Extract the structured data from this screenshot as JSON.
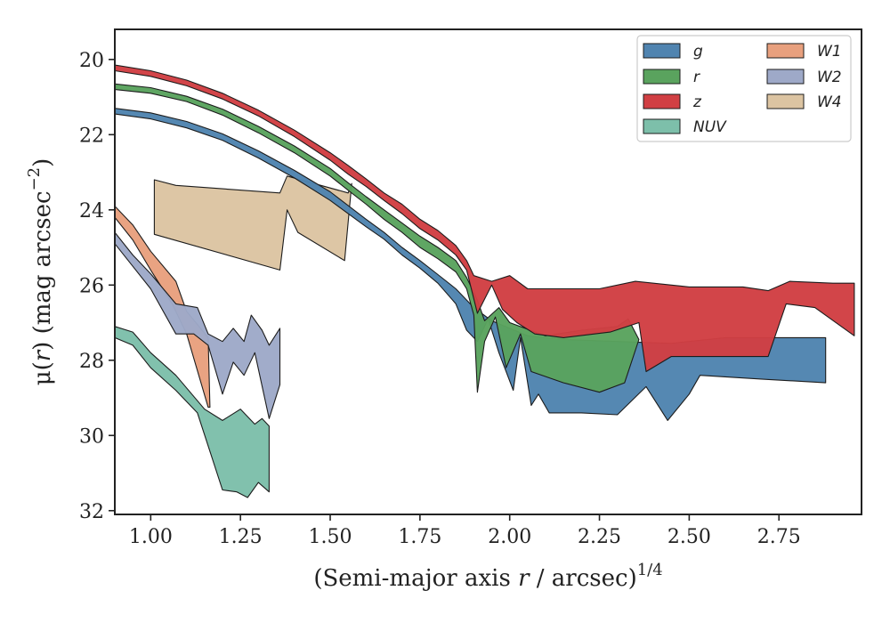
{
  "chart_data": {
    "type": "area",
    "xlabel": {
      "main": "(Semi-major axis ",
      "var": "r",
      "unit": " / arcsec)",
      "sup": "1/4"
    },
    "ylabel": {
      "pre": "μ(",
      "var": "r",
      "post": ") (mag arcsec",
      "sup": "−2",
      "close": ")"
    },
    "xlim": [
      0.9,
      2.98
    ],
    "ylim": [
      32.1,
      19.2
    ],
    "y_inverted": true,
    "xticks": [
      1.0,
      1.25,
      1.5,
      1.75,
      2.0,
      2.25,
      2.5,
      2.75
    ],
    "xtick_labels": [
      "1.00",
      "1.25",
      "1.50",
      "1.75",
      "2.00",
      "2.25",
      "2.50",
      "2.75"
    ],
    "yticks": [
      20,
      22,
      24,
      26,
      28,
      30,
      32
    ],
    "ytick_labels": [
      "20",
      "22",
      "24",
      "26",
      "28",
      "30",
      "32"
    ],
    "grid": false,
    "legend_position": "top-right",
    "series": [
      {
        "name": "W4",
        "color": "#dcc4a2",
        "top": [
          [
            1.01,
            23.2
          ],
          [
            1.07,
            23.35
          ],
          [
            1.36,
            23.55
          ],
          [
            1.38,
            23.1
          ],
          [
            1.55,
            23.55
          ],
          [
            1.56,
            23.3
          ]
        ],
        "bottom": [
          [
            1.01,
            24.65
          ],
          [
            1.36,
            25.6
          ],
          [
            1.38,
            24.0
          ],
          [
            1.41,
            24.6
          ],
          [
            1.54,
            25.35
          ],
          [
            1.56,
            23.3
          ]
        ]
      },
      {
        "name": "W1",
        "color": "#e8a07e",
        "top": [
          [
            0.9,
            23.9
          ],
          [
            0.95,
            24.4
          ],
          [
            1.0,
            25.1
          ],
          [
            1.07,
            25.9
          ],
          [
            1.1,
            26.7
          ],
          [
            1.16,
            27.4
          ],
          [
            1.165,
            29.25
          ]
        ],
        "bottom": [
          [
            0.9,
            24.2
          ],
          [
            0.95,
            24.8
          ],
          [
            1.0,
            25.6
          ],
          [
            1.06,
            26.5
          ],
          [
            1.1,
            27.3
          ],
          [
            1.16,
            29.25
          ]
        ]
      },
      {
        "name": "W2",
        "color": "#9ea9c8",
        "top": [
          [
            0.9,
            24.6
          ],
          [
            0.95,
            25.2
          ],
          [
            1.0,
            25.7
          ],
          [
            1.07,
            26.5
          ],
          [
            1.13,
            26.6
          ],
          [
            1.16,
            27.3
          ],
          [
            1.2,
            27.5
          ],
          [
            1.23,
            27.15
          ],
          [
            1.26,
            27.5
          ],
          [
            1.28,
            26.8
          ],
          [
            1.31,
            27.2
          ],
          [
            1.33,
            27.6
          ],
          [
            1.36,
            27.15
          ],
          [
            1.36,
            28.65
          ]
        ],
        "bottom": [
          [
            0.9,
            24.9
          ],
          [
            0.95,
            25.5
          ],
          [
            1.0,
            26.1
          ],
          [
            1.07,
            27.3
          ],
          [
            1.12,
            27.3
          ],
          [
            1.16,
            27.6
          ],
          [
            1.2,
            28.9
          ],
          [
            1.23,
            28.05
          ],
          [
            1.26,
            28.4
          ],
          [
            1.29,
            27.8
          ],
          [
            1.33,
            29.55
          ],
          [
            1.36,
            28.65
          ]
        ]
      },
      {
        "name": "NUV",
        "color": "#7dbfaa",
        "top": [
          [
            0.9,
            27.1
          ],
          [
            0.95,
            27.25
          ],
          [
            1.0,
            27.8
          ],
          [
            1.07,
            28.4
          ],
          [
            1.15,
            29.3
          ],
          [
            1.2,
            29.6
          ],
          [
            1.25,
            29.3
          ],
          [
            1.29,
            29.7
          ],
          [
            1.31,
            29.55
          ],
          [
            1.33,
            29.75
          ],
          [
            1.33,
            31.5
          ]
        ],
        "bottom": [
          [
            0.9,
            27.4
          ],
          [
            0.95,
            27.6
          ],
          [
            1.0,
            28.2
          ],
          [
            1.07,
            28.8
          ],
          [
            1.13,
            29.4
          ],
          [
            1.2,
            31.45
          ],
          [
            1.24,
            31.5
          ],
          [
            1.27,
            31.65
          ],
          [
            1.3,
            31.25
          ],
          [
            1.33,
            31.5
          ]
        ]
      },
      {
        "name": "g",
        "color": "#5084b0",
        "top": [
          [
            0.9,
            21.3
          ],
          [
            1.0,
            21.42
          ],
          [
            1.1,
            21.65
          ],
          [
            1.2,
            21.98
          ],
          [
            1.3,
            22.43
          ],
          [
            1.4,
            22.95
          ],
          [
            1.5,
            23.52
          ],
          [
            1.6,
            24.25
          ],
          [
            1.65,
            24.6
          ],
          [
            1.7,
            25.0
          ],
          [
            1.75,
            25.35
          ],
          [
            1.8,
            25.72
          ],
          [
            1.85,
            26.1
          ],
          [
            1.9,
            26.6
          ],
          [
            1.95,
            26.95
          ],
          [
            2.0,
            27.15
          ],
          [
            2.05,
            27.35
          ],
          [
            2.15,
            27.45
          ],
          [
            2.3,
            27.5
          ],
          [
            2.45,
            27.55
          ],
          [
            2.6,
            27.4
          ],
          [
            2.75,
            27.4
          ],
          [
            2.88,
            27.4
          ],
          [
            2.88,
            28.6
          ]
        ],
        "bottom": [
          [
            0.9,
            21.45
          ],
          [
            1.0,
            21.58
          ],
          [
            1.1,
            21.82
          ],
          [
            1.2,
            22.15
          ],
          [
            1.3,
            22.62
          ],
          [
            1.4,
            23.15
          ],
          [
            1.5,
            23.75
          ],
          [
            1.6,
            24.45
          ],
          [
            1.65,
            24.78
          ],
          [
            1.7,
            25.2
          ],
          [
            1.75,
            25.55
          ],
          [
            1.8,
            25.95
          ],
          [
            1.85,
            26.5
          ],
          [
            1.88,
            27.2
          ],
          [
            1.91,
            27.5
          ],
          [
            1.94,
            26.9
          ],
          [
            1.97,
            27.8
          ],
          [
            2.01,
            28.8
          ],
          [
            2.03,
            27.4
          ],
          [
            2.06,
            29.2
          ],
          [
            2.08,
            28.9
          ],
          [
            2.11,
            29.4
          ],
          [
            2.2,
            29.4
          ],
          [
            2.3,
            29.45
          ],
          [
            2.38,
            28.7
          ],
          [
            2.44,
            29.6
          ],
          [
            2.5,
            28.9
          ],
          [
            2.53,
            28.4
          ],
          [
            2.7,
            28.5
          ],
          [
            2.88,
            28.6
          ]
        ]
      },
      {
        "name": "r",
        "color": "#5aa35e",
        "top": [
          [
            0.9,
            20.65
          ],
          [
            1.0,
            20.75
          ],
          [
            1.1,
            20.98
          ],
          [
            1.2,
            21.32
          ],
          [
            1.3,
            21.78
          ],
          [
            1.4,
            22.3
          ],
          [
            1.5,
            22.9
          ],
          [
            1.55,
            23.28
          ],
          [
            1.6,
            23.65
          ],
          [
            1.65,
            24.0
          ],
          [
            1.7,
            24.35
          ],
          [
            1.75,
            24.7
          ],
          [
            1.8,
            25.0
          ],
          [
            1.85,
            25.35
          ],
          [
            1.88,
            25.8
          ],
          [
            1.91,
            26.4
          ],
          [
            1.93,
            26.95
          ],
          [
            1.97,
            26.6
          ],
          [
            2.0,
            27.0
          ],
          [
            2.1,
            27.35
          ],
          [
            2.2,
            27.2
          ],
          [
            2.3,
            27.1
          ],
          [
            2.33,
            26.9
          ],
          [
            2.36,
            27.45
          ]
        ],
        "bottom": [
          [
            0.9,
            20.8
          ],
          [
            1.0,
            20.9
          ],
          [
            1.1,
            21.12
          ],
          [
            1.2,
            21.48
          ],
          [
            1.3,
            21.95
          ],
          [
            1.4,
            22.48
          ],
          [
            1.5,
            23.1
          ],
          [
            1.55,
            23.48
          ],
          [
            1.6,
            23.85
          ],
          [
            1.65,
            24.25
          ],
          [
            1.7,
            24.6
          ],
          [
            1.75,
            25.0
          ],
          [
            1.8,
            25.3
          ],
          [
            1.85,
            25.65
          ],
          [
            1.88,
            26.1
          ],
          [
            1.9,
            26.8
          ],
          [
            1.91,
            28.85
          ],
          [
            1.93,
            27.5
          ],
          [
            1.96,
            26.85
          ],
          [
            1.99,
            28.2
          ],
          [
            2.03,
            27.3
          ],
          [
            2.06,
            28.3
          ],
          [
            2.15,
            28.6
          ],
          [
            2.25,
            28.85
          ],
          [
            2.32,
            28.6
          ],
          [
            2.36,
            27.45
          ]
        ]
      },
      {
        "name": "z",
        "color": "#d13f43",
        "top": [
          [
            0.9,
            20.15
          ],
          [
            1.0,
            20.3
          ],
          [
            1.1,
            20.55
          ],
          [
            1.2,
            20.9
          ],
          [
            1.3,
            21.35
          ],
          [
            1.4,
            21.88
          ],
          [
            1.5,
            22.48
          ],
          [
            1.55,
            22.82
          ],
          [
            1.6,
            23.18
          ],
          [
            1.65,
            23.55
          ],
          [
            1.7,
            23.85
          ],
          [
            1.75,
            24.25
          ],
          [
            1.8,
            24.55
          ],
          [
            1.85,
            24.95
          ],
          [
            1.88,
            25.35
          ],
          [
            1.9,
            25.75
          ],
          [
            1.95,
            25.9
          ],
          [
            2.0,
            25.75
          ],
          [
            2.05,
            26.1
          ],
          [
            2.15,
            26.1
          ],
          [
            2.25,
            26.1
          ],
          [
            2.35,
            25.9
          ],
          [
            2.5,
            26.05
          ],
          [
            2.65,
            26.05
          ],
          [
            2.72,
            26.15
          ],
          [
            2.78,
            25.9
          ],
          [
            2.9,
            25.95
          ],
          [
            2.96,
            25.95
          ],
          [
            2.96,
            27.35
          ]
        ],
        "bottom": [
          [
            0.9,
            20.3
          ],
          [
            1.0,
            20.45
          ],
          [
            1.1,
            20.7
          ],
          [
            1.2,
            21.05
          ],
          [
            1.3,
            21.5
          ],
          [
            1.4,
            22.05
          ],
          [
            1.5,
            22.68
          ],
          [
            1.55,
            23.05
          ],
          [
            1.6,
            23.38
          ],
          [
            1.65,
            23.75
          ],
          [
            1.7,
            24.1
          ],
          [
            1.75,
            24.5
          ],
          [
            1.8,
            24.8
          ],
          [
            1.85,
            25.2
          ],
          [
            1.88,
            25.6
          ],
          [
            1.91,
            26.75
          ],
          [
            1.95,
            26.0
          ],
          [
            1.98,
            26.65
          ],
          [
            2.02,
            27.0
          ],
          [
            2.07,
            27.3
          ],
          [
            2.15,
            27.4
          ],
          [
            2.28,
            27.25
          ],
          [
            2.36,
            27.0
          ],
          [
            2.38,
            28.3
          ],
          [
            2.45,
            27.9
          ],
          [
            2.55,
            27.9
          ],
          [
            2.72,
            27.9
          ],
          [
            2.77,
            26.5
          ],
          [
            2.85,
            26.6
          ],
          [
            2.96,
            27.35
          ]
        ]
      }
    ],
    "legend": {
      "columns": [
        [
          "g",
          "r",
          "z",
          "NUV"
        ],
        [
          "W1",
          "W2",
          "W4"
        ]
      ]
    }
  }
}
